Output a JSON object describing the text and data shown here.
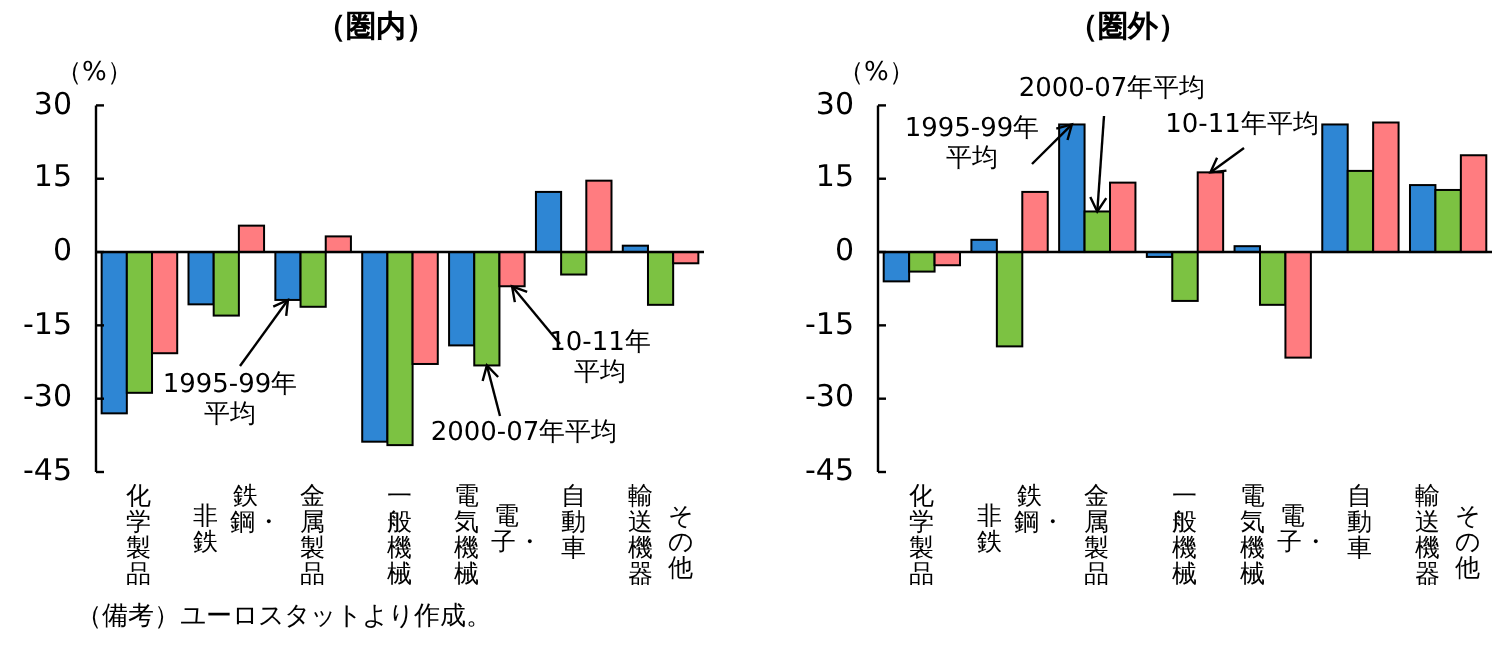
{
  "chart_data": [
    {
      "type": "bar",
      "title": "（圏内）",
      "ylabel": "（%）",
      "categories": [
        "化学製品",
        "鉄鋼・非鉄",
        "金属製品",
        "一般機械",
        "電子・電気機械",
        "自動車",
        "その他輸送機器"
      ],
      "ylim": [
        -45,
        30
      ],
      "yticks": [
        -45,
        -30,
        -15,
        0,
        15,
        30
      ],
      "series": [
        {
          "name": "1995-99年平均",
          "color": "#2e86d4",
          "values": [
            -33,
            -10.7,
            -9.8,
            -38.8,
            -19.1,
            12.3,
            1.3
          ]
        },
        {
          "name": "2000-07年平均",
          "color": "#7cc242",
          "values": [
            -28.8,
            -13,
            -11.2,
            -39.5,
            -23.2,
            -4.6,
            -10.8
          ]
        },
        {
          "name": "10-11年平均",
          "color": "#ff7c80",
          "values": [
            -20.7,
            5.4,
            3.2,
            -22.9,
            -7,
            14.6,
            -2.3
          ]
        }
      ],
      "annotations": [
        "（備考）ユーロスタットより作成。"
      ]
    },
    {
      "type": "bar",
      "title": "（圏外）",
      "ylabel": "（%）",
      "categories": [
        "化学製品",
        "鉄鋼・非鉄",
        "金属製品",
        "一般機械",
        "電子・電気機械",
        "自動車",
        "その他輸送機器"
      ],
      "ylim": [
        -45,
        30
      ],
      "yticks": [
        -45,
        -30,
        -15,
        0,
        15,
        30
      ],
      "series": [
        {
          "name": "1995-99年平均",
          "color": "#2e86d4",
          "values": [
            -6,
            2.5,
            26.1,
            -1,
            1.2,
            26.1,
            13.7
          ]
        },
        {
          "name": "2000-07年平均",
          "color": "#7cc242",
          "values": [
            -4,
            -19.3,
            8.3,
            -10,
            -10.8,
            16.6,
            12.7
          ]
        },
        {
          "name": "10-11年平均",
          "color": "#ff7c80",
          "values": [
            -2.7,
            12.3,
            14.2,
            16.3,
            -21.6,
            26.5,
            19.8
          ]
        }
      ]
    }
  ]
}
